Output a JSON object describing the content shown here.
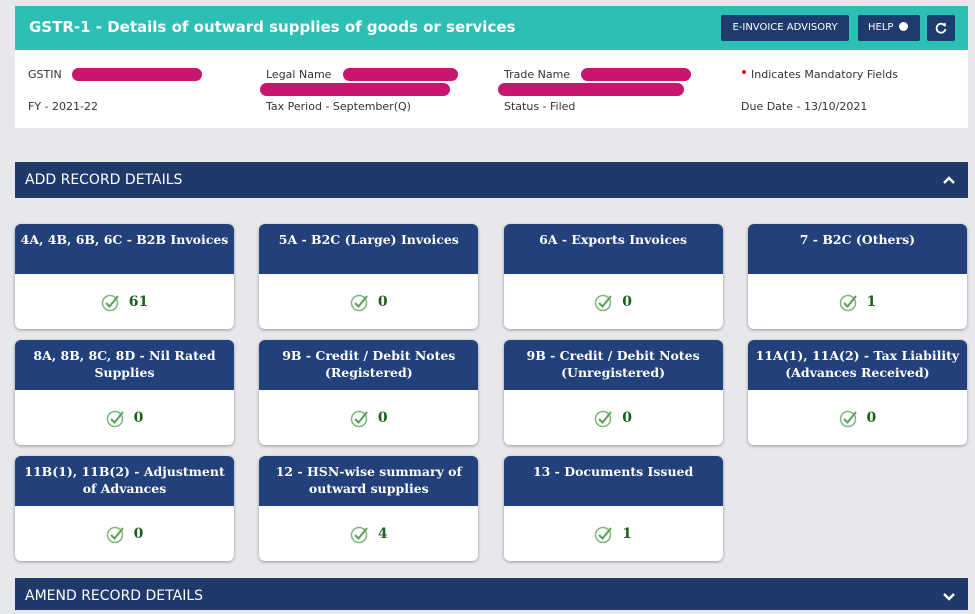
{
  "header": {
    "title": "GSTR-1 - Details of outward supplies of goods or services",
    "advisory_button": "E-INVOICE ADVISORY",
    "help_button": "HELP"
  },
  "info": {
    "gstin_label": "GSTIN",
    "legal_name_label": "Legal Name",
    "trade_name_label": "Trade Name",
    "mandatory_note": "Indicates Mandatory Fields",
    "fy": "FY - 2021-22",
    "tax_period": "Tax Period - September(Q)",
    "status": "Status - Filed",
    "due_date": "Due Date - 13/10/2021"
  },
  "sections": {
    "add": "ADD RECORD DETAILS",
    "amend": "AMEND RECORD DETAILS"
  },
  "tiles": [
    {
      "title": "4A, 4B, 6B, 6C - B2B Invoices",
      "count": 61
    },
    {
      "title": "5A - B2C (Large) Invoices",
      "count": 0
    },
    {
      "title": "6A - Exports Invoices",
      "count": 0
    },
    {
      "title": "7 - B2C (Others)",
      "count": 1
    },
    {
      "title": "8A, 8B, 8C, 8D - Nil Rated Supplies",
      "count": 0
    },
    {
      "title": "9B - Credit / Debit Notes (Registered)",
      "count": 0
    },
    {
      "title": "9B - Credit / Debit Notes (Unregistered)",
      "count": 0
    },
    {
      "title": "11A(1), 11A(2) - Tax Liability (Advances Received)",
      "count": 0
    },
    {
      "title": "11B(1), 11B(2) - Adjustment of Advances",
      "count": 0
    },
    {
      "title": "12 - HSN-wise summary of outward supplies",
      "count": 4
    },
    {
      "title": "13 - Documents Issued",
      "count": 1
    }
  ]
}
